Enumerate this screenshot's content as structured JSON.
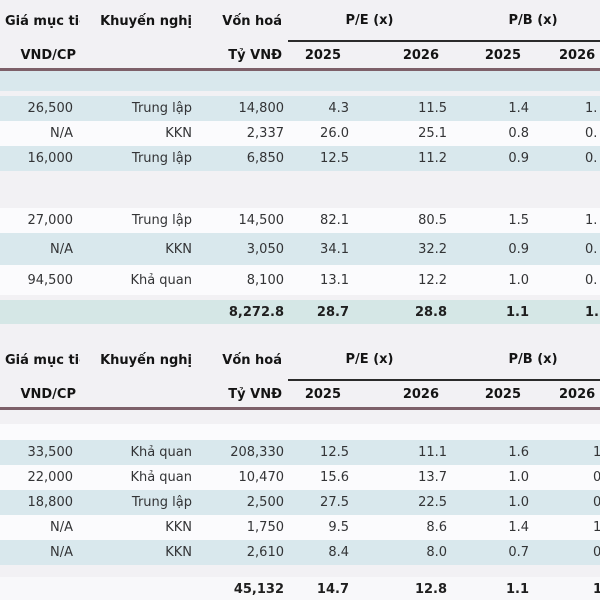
{
  "colors": {
    "stripe_blue": "#d9e8ed",
    "total_row_green": "#d5e7e6",
    "header_rule_maroon": "#7d6069",
    "group_underline": "#2b2b2b",
    "page_background": "#f2f1f4"
  },
  "chart_data": [
    {
      "type": "table",
      "columns": [
        "Giá mục tiêu",
        "Khuyến nghị",
        "Vốn hoá",
        "P/E (x)",
        "P/B (x)"
      ],
      "sub_headers": [
        "VND/CP",
        "",
        "Tỷ VNĐ",
        "2025",
        "2026",
        "2025",
        "2026"
      ],
      "rows": [
        [
          "26,500",
          "Trung lập",
          "14,800",
          "4.3",
          "11.5",
          "1.4",
          "1."
        ],
        [
          "N/A",
          "KKN",
          "2,337",
          "26.0",
          "25.1",
          "0.8",
          "0."
        ],
        [
          "16,000",
          "Trung lập",
          "6,850",
          "12.5",
          "11.2",
          "0.9",
          "0."
        ],
        [
          "27,000",
          "Trung lập",
          "14,500",
          "82.1",
          "80.5",
          "1.5",
          "1."
        ],
        [
          "N/A",
          "KKN",
          "3,050",
          "34.1",
          "32.2",
          "0.9",
          "0."
        ],
        [
          "94,500",
          "Khả quan",
          "8,100",
          "13.1",
          "12.2",
          "1.0",
          "0."
        ]
      ],
      "total_row": [
        "",
        "",
        "8,272.8",
        "28.7",
        "28.8",
        "1.1",
        "1."
      ]
    },
    {
      "type": "table",
      "columns": [
        "Giá mục tiêu",
        "Khuyến nghị",
        "Vốn hoá",
        "P/E (x)",
        "P/B (x)"
      ],
      "sub_headers": [
        "VND/CP",
        "",
        "Tỷ VNĐ",
        "2025",
        "2026",
        "2025",
        "2026"
      ],
      "rows": [
        [
          "33,500",
          "Khả quan",
          "208,330",
          "12.5",
          "11.1",
          "1.6",
          "1"
        ],
        [
          "22,000",
          "Khả quan",
          "10,470",
          "15.6",
          "13.7",
          "1.0",
          "0"
        ],
        [
          "18,800",
          "Trung lập",
          "2,500",
          "27.5",
          "22.5",
          "1.0",
          "0"
        ],
        [
          "N/A",
          "KKN",
          "1,750",
          "9.5",
          "8.6",
          "1.4",
          "1"
        ],
        [
          "N/A",
          "KKN",
          "2,610",
          "8.4",
          "8.0",
          "0.7",
          "0"
        ]
      ],
      "total_row": [
        "",
        "",
        "45,132",
        "14.7",
        "12.8",
        "1.1",
        "1"
      ]
    }
  ]
}
